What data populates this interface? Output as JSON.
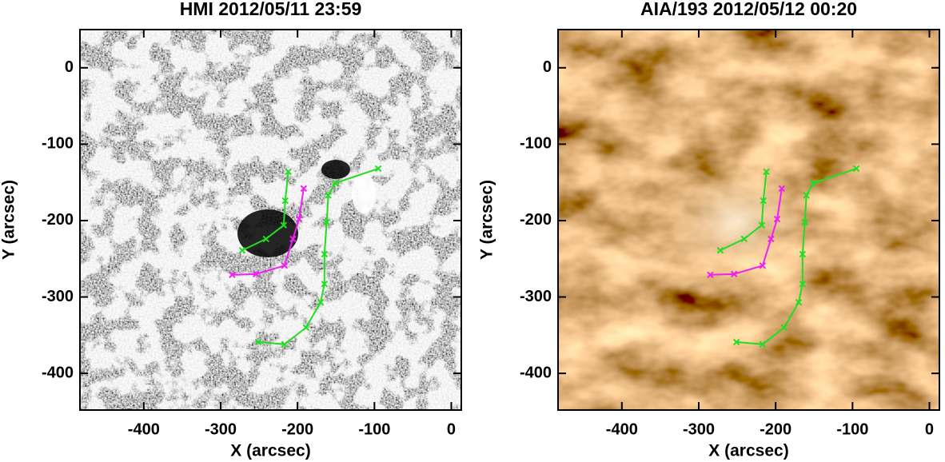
{
  "chart_data": [
    {
      "type": "line",
      "title": "HMI 2012/05/11 23:59",
      "xlabel": "X (arcsec)",
      "ylabel": "Y (arcsec)",
      "xlim": [
        -483,
        13
      ],
      "ylim": [
        -448,
        50
      ],
      "xticks": [
        -400,
        -300,
        -200,
        -100,
        0
      ],
      "yticks": [
        -400,
        -300,
        -200,
        -100,
        0
      ],
      "background": "magnetogram",
      "series": [
        {
          "color": "#22dd22",
          "x": [
            -272,
            -241,
            -218,
            -216,
            -212
          ],
          "values": [
            -239,
            -224,
            -206,
            -174,
            -136
          ]
        },
        {
          "color": "#22dd22",
          "x": [
            -95,
            -151,
            -160,
            -162,
            -165,
            -165,
            -170,
            -189,
            -217,
            -251
          ],
          "values": [
            -132,
            -151,
            -167,
            -202,
            -244,
            -283,
            -307,
            -340,
            -362,
            -359
          ]
        },
        {
          "color": "#ee22ee",
          "x": [
            -192,
            -198,
            -206,
            -217,
            -254,
            -285
          ],
          "values": [
            -158,
            -198,
            -224,
            -259,
            -270,
            -271
          ]
        }
      ]
    },
    {
      "type": "line",
      "title": "AIA/193 2012/05/12 00:20",
      "xlabel": "X (arcsec)",
      "ylabel": "Y (arcsec)",
      "xlim": [
        -483,
        13
      ],
      "ylim": [
        -448,
        50
      ],
      "xticks": [
        -400,
        -300,
        -200,
        -100,
        0
      ],
      "yticks": [
        -400,
        -300,
        -200,
        -100,
        0
      ],
      "background": "euv",
      "series": [
        {
          "color": "#22dd22",
          "x": [
            -272,
            -241,
            -218,
            -216,
            -212
          ],
          "values": [
            -239,
            -224,
            -206,
            -174,
            -136
          ]
        },
        {
          "color": "#22dd22",
          "x": [
            -95,
            -151,
            -160,
            -162,
            -165,
            -165,
            -170,
            -189,
            -217,
            -251
          ],
          "values": [
            -132,
            -151,
            -167,
            -202,
            -244,
            -283,
            -307,
            -340,
            -362,
            -359
          ]
        },
        {
          "color": "#ee22ee",
          "x": [
            -192,
            -198,
            -206,
            -217,
            -254,
            -285
          ],
          "values": [
            -158,
            -198,
            -224,
            -259,
            -270,
            -271
          ]
        }
      ]
    }
  ]
}
